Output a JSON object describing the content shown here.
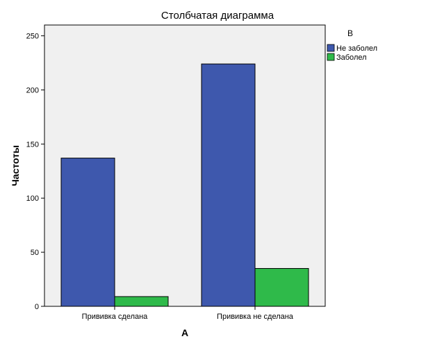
{
  "chart_data": {
    "type": "bar",
    "title": "Столбчатая диаграмма",
    "xlabel": "A",
    "ylabel": "Частоты",
    "categories": [
      "Прививка сделана",
      "Прививка не сделана"
    ],
    "series": [
      {
        "name": "Не заболел",
        "values": [
          137,
          224
        ],
        "color": "#3e58ad"
      },
      {
        "name": "Заболел",
        "values": [
          9,
          35
        ],
        "color": "#2fba4a"
      }
    ],
    "ylim": [
      0,
      260
    ],
    "yticks": [
      0,
      50,
      100,
      150,
      200,
      250
    ],
    "legend": {
      "title": "B",
      "position": "right"
    },
    "plot_background": "#f0f0f0",
    "grid": false
  }
}
